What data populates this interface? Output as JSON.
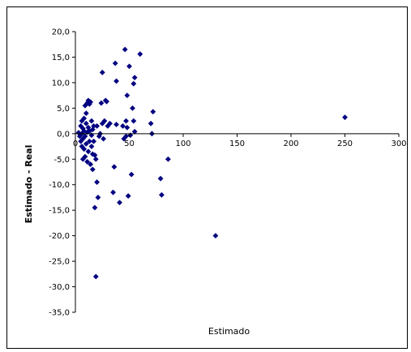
{
  "chart_data": {
    "type": "scatter",
    "title": "",
    "xlabel": "Estimado",
    "ylabel": "Estimado - Real",
    "xlim": [
      0,
      300
    ],
    "ylim": [
      -35,
      20
    ],
    "x_ticks": [
      0,
      50,
      100,
      150,
      200,
      250,
      300
    ],
    "y_ticks": [
      20,
      15,
      10,
      5,
      0,
      -5,
      -10,
      -15,
      -20,
      -25,
      -30,
      -35
    ],
    "y_tick_format": "0,0",
    "x_axis_at_y": 0,
    "grid": false,
    "legend": "none",
    "marker": "diamond",
    "marker_color": "#000080",
    "points": [
      [
        3,
        0.2
      ],
      [
        4,
        -0.5
      ],
      [
        5,
        1.5
      ],
      [
        5,
        -1.5
      ],
      [
        6,
        0.0
      ],
      [
        6,
        2.5
      ],
      [
        6,
        -2.5
      ],
      [
        7,
        -5.0
      ],
      [
        7,
        1.0
      ],
      [
        7,
        -1.0
      ],
      [
        8,
        3.0
      ],
      [
        8,
        -3.0
      ],
      [
        8,
        0.5
      ],
      [
        9,
        5.5
      ],
      [
        9,
        -0.5
      ],
      [
        9,
        -4.5
      ],
      [
        10,
        2.0
      ],
      [
        10,
        -2.0
      ],
      [
        10,
        4.0
      ],
      [
        11,
        -5.5
      ],
      [
        11,
        6.0
      ],
      [
        11,
        0.3
      ],
      [
        12,
        -3.5
      ],
      [
        12,
        1.2
      ],
      [
        12,
        6.5
      ],
      [
        13,
        -1.5
      ],
      [
        13,
        5.8
      ],
      [
        13,
        0.5
      ],
      [
        14,
        6.2
      ],
      [
        14,
        -6.0
      ],
      [
        15,
        2.5
      ],
      [
        15,
        -2.5
      ],
      [
        15,
        -0.3
      ],
      [
        16,
        0.8
      ],
      [
        16,
        -4.0
      ],
      [
        16,
        -7.0
      ],
      [
        17,
        -1.5
      ],
      [
        17,
        1.5
      ],
      [
        18,
        -4.2
      ],
      [
        18,
        -14.5
      ],
      [
        19,
        -5.0
      ],
      [
        19,
        -28.0
      ],
      [
        20,
        -9.5
      ],
      [
        20,
        1.5
      ],
      [
        21,
        -12.5
      ],
      [
        22,
        -0.5
      ],
      [
        23,
        0.0
      ],
      [
        24,
        6.0
      ],
      [
        25,
        12.0
      ],
      [
        25,
        2.0
      ],
      [
        26,
        -1.0
      ],
      [
        27,
        2.5
      ],
      [
        28,
        6.5
      ],
      [
        29,
        6.3
      ],
      [
        30,
        1.5
      ],
      [
        32,
        2.0
      ],
      [
        35,
        -11.5
      ],
      [
        36,
        -6.5
      ],
      [
        37,
        13.8
      ],
      [
        38,
        10.3
      ],
      [
        38,
        1.8
      ],
      [
        41,
        -13.5
      ],
      [
        44,
        1.5
      ],
      [
        45,
        -1.0
      ],
      [
        46,
        16.5
      ],
      [
        47,
        -0.5
      ],
      [
        47,
        2.5
      ],
      [
        48,
        7.5
      ],
      [
        48,
        1.2
      ],
      [
        49,
        -12.2
      ],
      [
        50,
        13.2
      ],
      [
        51,
        -0.3
      ],
      [
        52,
        -8.0
      ],
      [
        53,
        5.0
      ],
      [
        54,
        2.5
      ],
      [
        54,
        9.8
      ],
      [
        55,
        11.0
      ],
      [
        55,
        0.4
      ],
      [
        60,
        15.6
      ],
      [
        70,
        2.0
      ],
      [
        71,
        0.0
      ],
      [
        72,
        4.3
      ],
      [
        79,
        -8.8
      ],
      [
        80,
        -12.0
      ],
      [
        86,
        -5.0
      ],
      [
        130,
        -20.0
      ],
      [
        250,
        3.2
      ]
    ]
  }
}
